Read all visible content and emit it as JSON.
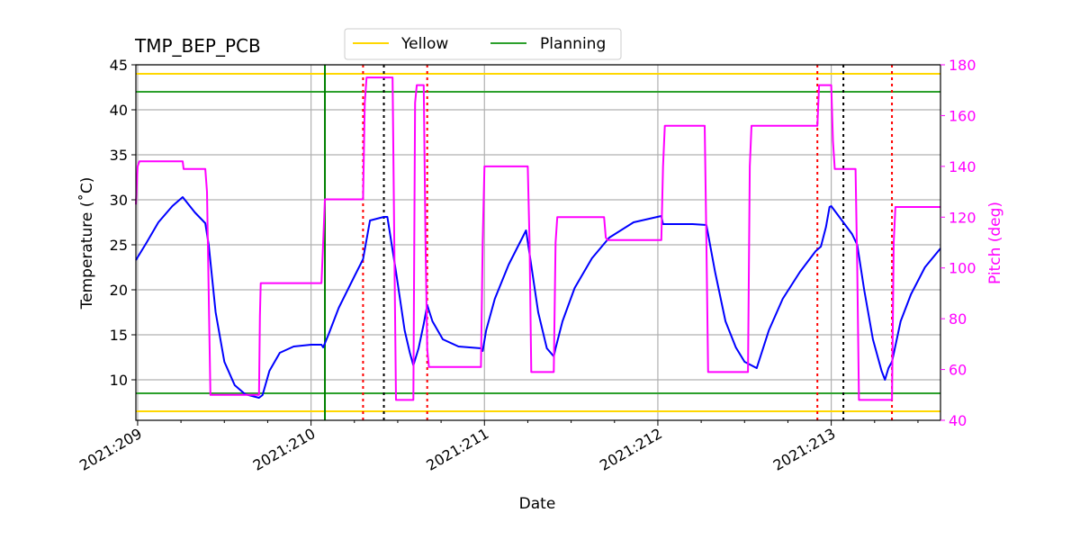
{
  "chart_data": {
    "type": "line",
    "title": "TMP_BEP_PCB",
    "xlabel": "Date",
    "ylabel": "Temperature ($^\\circ$C)",
    "ylabel_display": "Temperature (˚C)",
    "y2label": "Pitch (deg)",
    "xlim": [
      208.99,
      213.63
    ],
    "ylim": [
      5.5,
      45
    ],
    "y2lim": [
      40,
      180
    ],
    "x_ticks": [
      209,
      210,
      211,
      212,
      213
    ],
    "x_tick_labels": [
      "2021:209",
      "2021:210",
      "2021:211",
      "2021:212",
      "2021:213"
    ],
    "y_ticks": [
      10,
      15,
      20,
      25,
      30,
      35,
      40,
      45
    ],
    "y2_ticks": [
      40,
      60,
      80,
      100,
      120,
      140,
      160,
      180
    ],
    "grid": true,
    "legend": {
      "placement": "top-center (above plot)",
      "entries": [
        {
          "name": "Yellow",
          "color": "#ffd700"
        },
        {
          "name": "Planning",
          "color": "#2ca02c"
        }
      ]
    },
    "limit_lines": [
      {
        "name": "Yellow",
        "color": "#ffd700",
        "values": [
          44,
          6.5
        ]
      },
      {
        "name": "Planning",
        "color": "#2ca02c",
        "values": [
          42,
          8.5
        ]
      }
    ],
    "vertical_lines": [
      {
        "x": 210.08,
        "color": "#008000",
        "style": "solid"
      },
      {
        "x": 210.3,
        "color": "#ff0000",
        "style": "dotted"
      },
      {
        "x": 210.42,
        "color": "#000000",
        "style": "dotted"
      },
      {
        "x": 210.67,
        "color": "#ff0000",
        "style": "dotted"
      },
      {
        "x": 212.92,
        "color": "#ff0000",
        "style": "dotted"
      },
      {
        "x": 213.07,
        "color": "#000000",
        "style": "dotted"
      },
      {
        "x": 213.35,
        "color": "#ff0000",
        "style": "dotted"
      }
    ],
    "series": [
      {
        "name": "Temperature",
        "axis": "left",
        "color": "#0000ff",
        "x": [
          208.99,
          209.05,
          209.12,
          209.2,
          209.26,
          209.33,
          209.39,
          209.41,
          209.45,
          209.5,
          209.56,
          209.62,
          209.7,
          209.72,
          209.76,
          209.82,
          209.9,
          210.0,
          210.06,
          210.07,
          210.1,
          210.16,
          210.25,
          210.3,
          210.34,
          210.42,
          210.44,
          210.49,
          210.54,
          210.57,
          210.59,
          210.62,
          210.65,
          210.67,
          210.7,
          210.76,
          210.85,
          210.98,
          210.99,
          211.01,
          211.06,
          211.14,
          211.24,
          211.26,
          211.31,
          211.36,
          211.4,
          211.41,
          211.45,
          211.52,
          211.62,
          211.72,
          211.86,
          212.02,
          212.03,
          212.2,
          212.28,
          212.33,
          212.39,
          212.45,
          212.5,
          212.53,
          212.57,
          212.64,
          212.72,
          212.82,
          212.91,
          212.94,
          212.97,
          212.99,
          213.0,
          213.05,
          213.12,
          213.15,
          213.19,
          213.24,
          213.29,
          213.31,
          213.33,
          213.35,
          213.4,
          213.46,
          213.54,
          213.63
        ],
        "y": [
          23.3,
          25.2,
          27.5,
          29.3,
          30.3,
          28.6,
          27.4,
          25.0,
          17.5,
          12.0,
          9.4,
          8.4,
          8.0,
          8.3,
          11.0,
          13.0,
          13.7,
          13.9,
          13.9,
          13.6,
          15.0,
          18.0,
          21.5,
          23.4,
          27.7,
          28.1,
          28.1,
          22.0,
          15.5,
          13.0,
          11.6,
          13.5,
          16.2,
          18.3,
          16.5,
          14.5,
          13.7,
          13.5,
          13.2,
          15.5,
          19.0,
          22.8,
          26.6,
          24.0,
          17.5,
          13.5,
          12.6,
          13.5,
          16.5,
          20.2,
          23.5,
          25.8,
          27.5,
          28.2,
          27.3,
          27.3,
          27.2,
          22.0,
          16.5,
          13.6,
          12.0,
          11.7,
          11.3,
          15.5,
          19.0,
          22.0,
          24.3,
          24.8,
          27.0,
          29.2,
          29.3,
          28.0,
          26.2,
          25.0,
          20.0,
          14.5,
          11.0,
          10.0,
          11.3,
          12.0,
          16.5,
          19.5,
          22.5,
          24.6
        ]
      },
      {
        "name": "Pitch",
        "axis": "right",
        "color": "#ff00ff",
        "x": [
          208.99,
          209.0,
          209.01,
          209.26,
          209.265,
          209.39,
          209.4,
          209.42,
          209.7,
          209.705,
          209.71,
          210.06,
          210.07,
          210.08,
          210.3,
          210.31,
          210.32,
          210.47,
          210.48,
          210.49,
          210.59,
          210.6,
          210.61,
          210.65,
          210.66,
          210.67,
          210.68,
          210.98,
          210.99,
          211.0,
          211.25,
          211.26,
          211.27,
          211.4,
          211.41,
          211.42,
          211.69,
          211.7,
          211.71,
          212.02,
          212.03,
          212.04,
          212.27,
          212.28,
          212.29,
          212.52,
          212.53,
          212.54,
          212.92,
          212.93,
          212.94,
          213.0,
          213.01,
          213.02,
          213.14,
          213.15,
          213.16,
          213.35,
          213.36,
          213.37,
          213.63
        ],
        "y": [
          125,
          140,
          142,
          142,
          139,
          139,
          130,
          50,
          50,
          81,
          94,
          94,
          110,
          127,
          127,
          165,
          175,
          175,
          110,
          48,
          48,
          165,
          172,
          172,
          110,
          68,
          61,
          61,
          110,
          140,
          140,
          110,
          59,
          59,
          110,
          120,
          120,
          112,
          111,
          111,
          140,
          156,
          156,
          110,
          59,
          59,
          140,
          156,
          156,
          172,
          172,
          172,
          150,
          139,
          139,
          100,
          48,
          48,
          110,
          124,
          124
        ]
      }
    ]
  }
}
